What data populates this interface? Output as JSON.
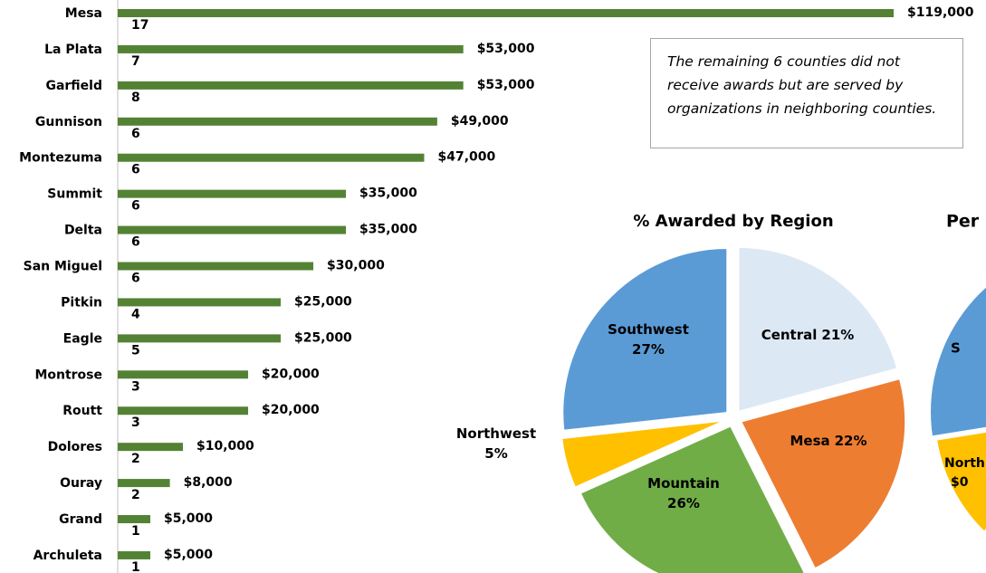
{
  "chart_data": [
    {
      "type": "bar",
      "categories": [
        "Mesa",
        "La Plata",
        "Garfield",
        "Gunnison",
        "Montezuma",
        "Summit",
        "Delta",
        "San Miguel",
        "Pitkin",
        "Eagle",
        "Montrose",
        "Routt",
        "Dolores",
        "Ouray",
        "Grand",
        "Archuleta"
      ],
      "values": [
        119000,
        53000,
        53000,
        49000,
        47000,
        35000,
        35000,
        30000,
        25000,
        25000,
        20000,
        20000,
        10000,
        8000,
        5000,
        5000
      ],
      "value_labels": [
        "$119,000",
        "$53,000",
        "$53,000",
        "$49,000",
        "$47,000",
        "$35,000",
        "$35,000",
        "$30,000",
        "$25,000",
        "$25,000",
        "$20,000",
        "$20,000",
        "$10,000",
        "$8,000",
        "$5,000",
        "$5,000"
      ],
      "counts": [
        17,
        7,
        8,
        6,
        6,
        6,
        6,
        6,
        4,
        5,
        3,
        3,
        2,
        2,
        1,
        1
      ],
      "color": "#548235",
      "annotation": "The remaining 6 counties did not receive awards but are served by organizations in neighboring counties."
    },
    {
      "type": "pie",
      "title": "% Awarded by Region",
      "categories": [
        "Central",
        "Mesa",
        "Mountain",
        "Northwest",
        "Southwest"
      ],
      "values": [
        21,
        22,
        26,
        5,
        27
      ],
      "value_labels": [
        "21%",
        "22%",
        "26%",
        "5%",
        "27%"
      ],
      "colors": [
        "#dde8f5",
        "#ed7d31",
        "#70ad47",
        "#ffc000",
        "#5b9bd5"
      ]
    },
    {
      "type": "pie",
      "title": "Per",
      "labels": [
        "S",
        "North",
        "$0"
      ]
    }
  ]
}
